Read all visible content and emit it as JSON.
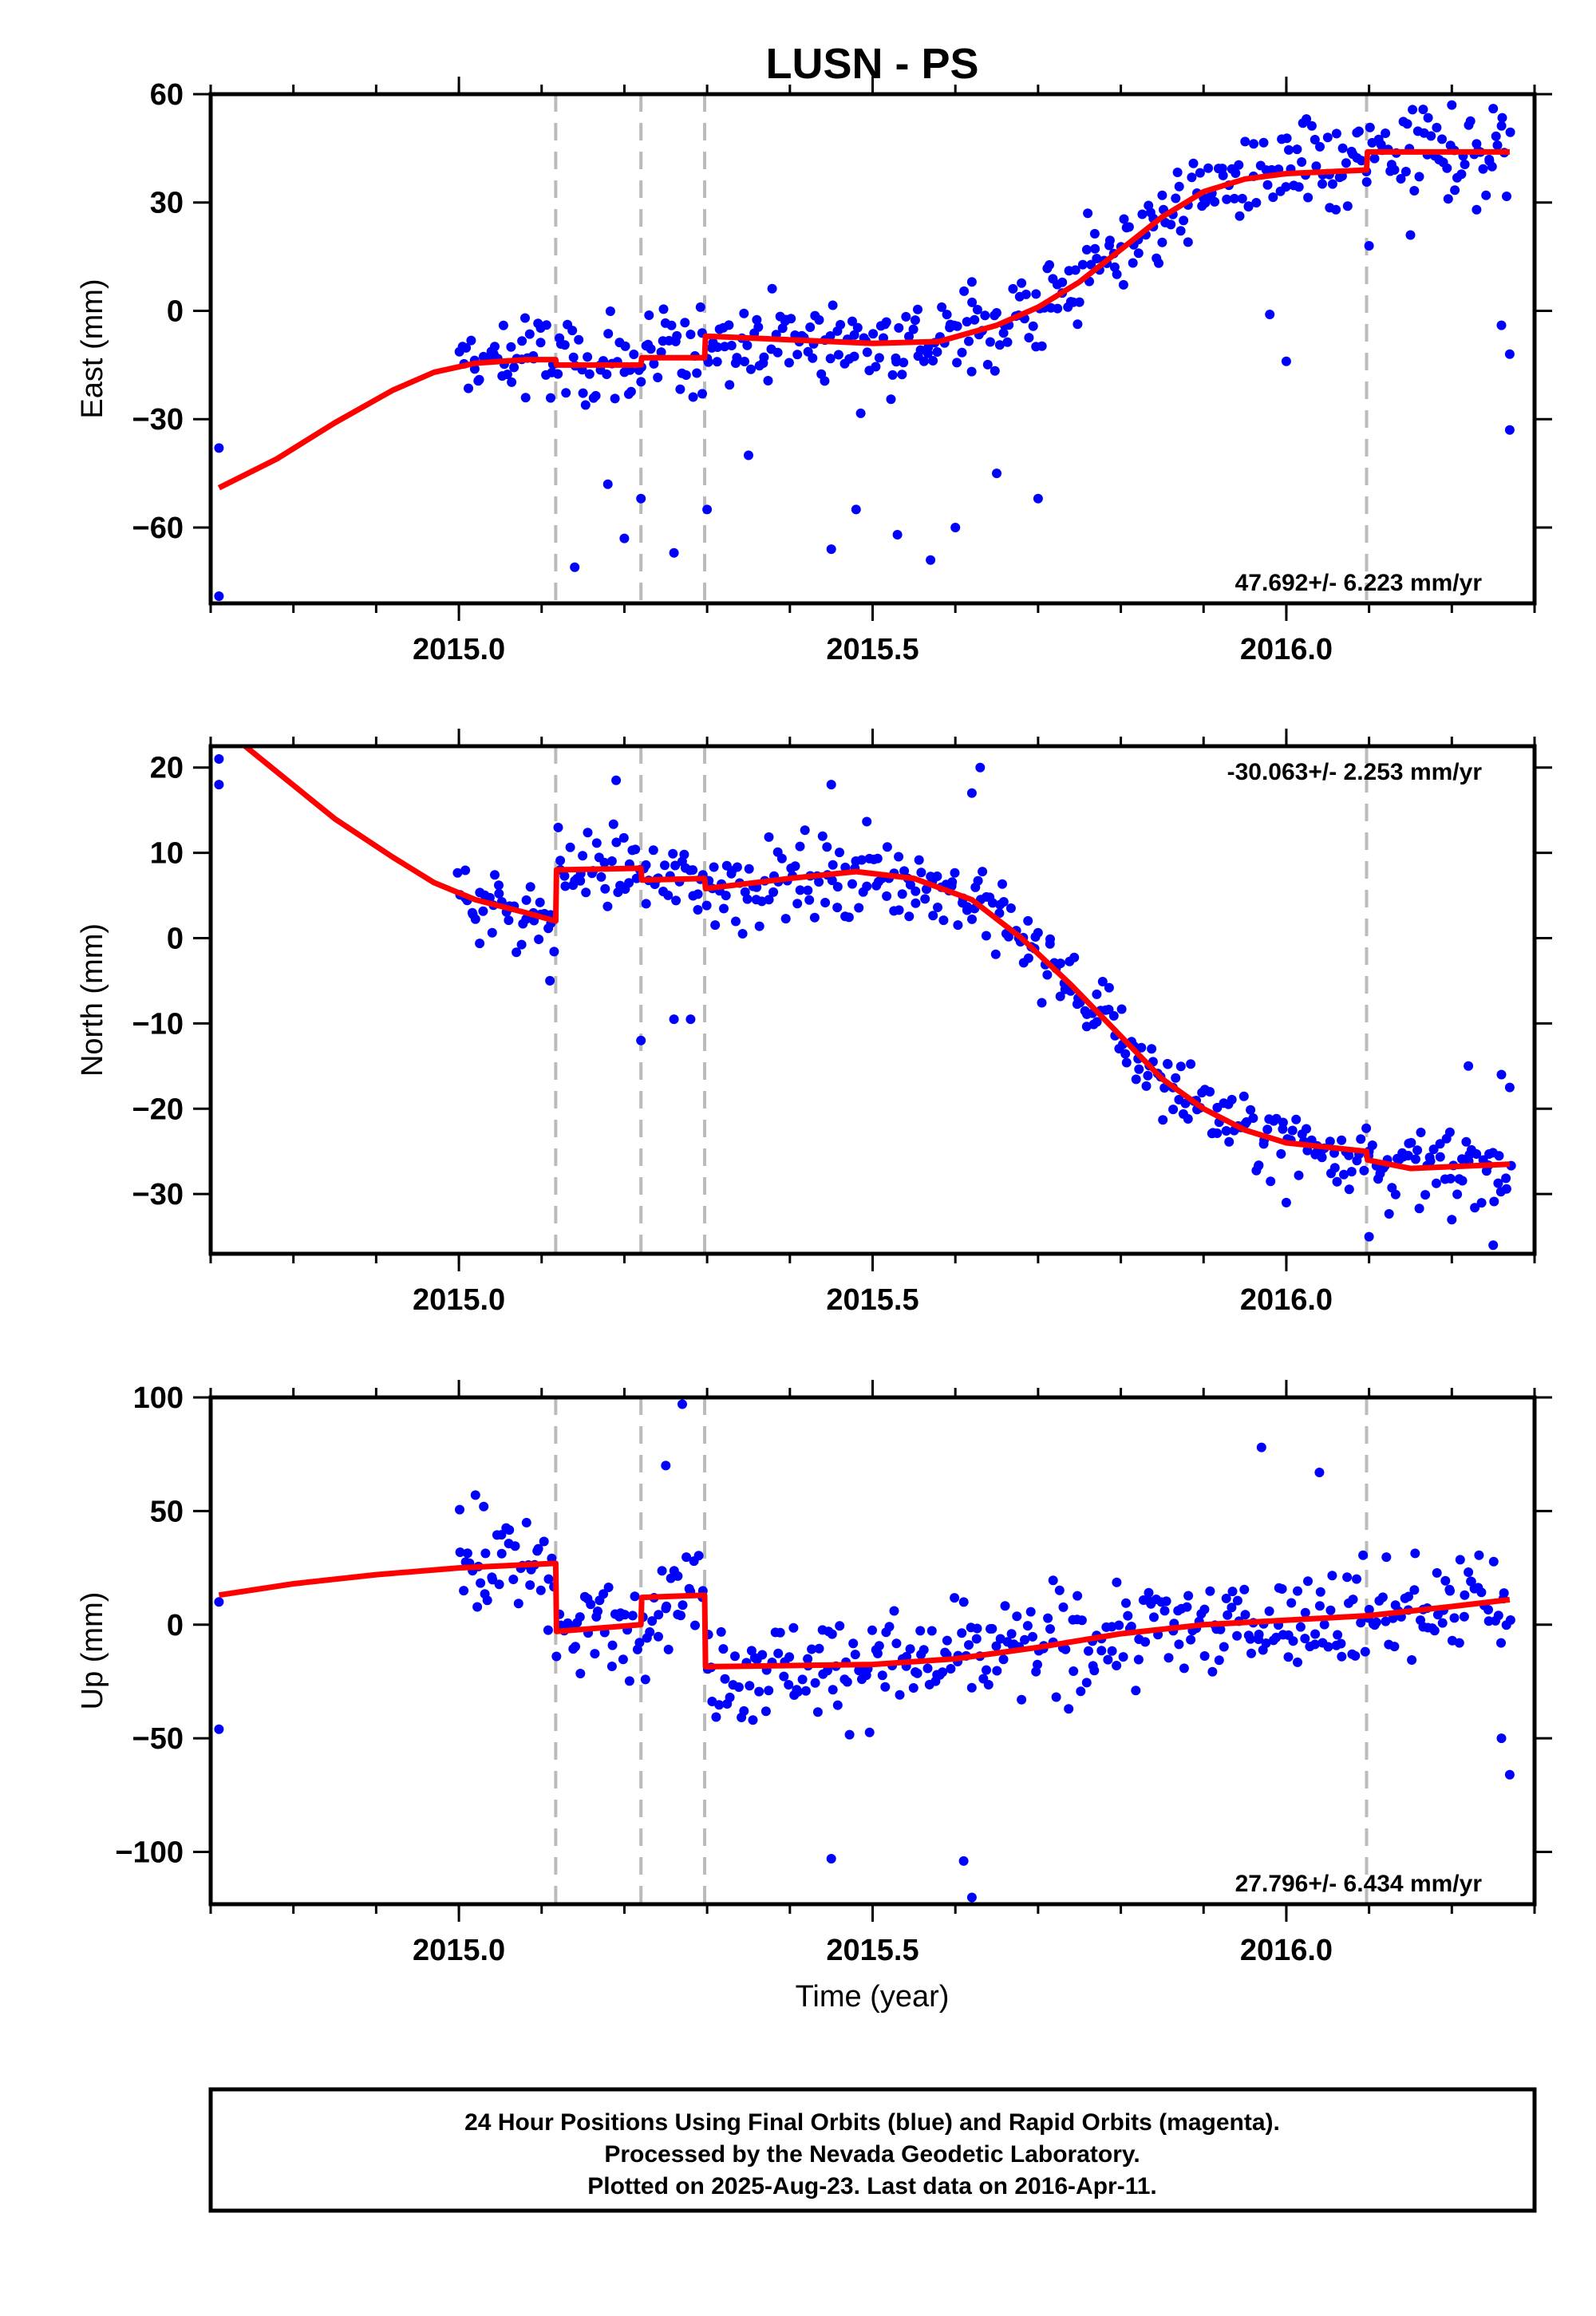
{
  "title": "LUSN - PS",
  "xlabel": "Time (year)",
  "footer": {
    "line1": "24 Hour Positions Using Final Orbits (blue) and Rapid Orbits (magenta).",
    "line2": "Processed by the Nevada Geodetic Laboratory.",
    "line3": "Plotted on 2025-Aug-23. Last data on 2016-Apr-11."
  },
  "colors": {
    "data": "#0000ff",
    "model": "#ff0000",
    "breaks": "#bbbbbb"
  },
  "chart_data": [
    {
      "type": "scatter",
      "component": "east",
      "ylabel": "East (mm)",
      "rate_text": "47.692+/- 6.223 mm/yr",
      "rate_position": "bottom-right",
      "xlim": [
        2014.7,
        2016.3
      ],
      "ylim": [
        -81,
        60
      ],
      "xticks": [
        2015.0,
        2015.5,
        2016.0
      ],
      "xtick_labels": [
        "2015.0",
        "2015.5",
        "2016.0"
      ],
      "yticks": [
        60,
        30,
        0,
        -30,
        -60
      ],
      "ytick_labels": [
        "60",
        "30",
        "0",
        "−30",
        "−60"
      ],
      "breaks": [
        2015.117,
        2015.22,
        2015.297,
        2016.097
      ],
      "model": [
        [
          2014.71,
          -49
        ],
        [
          2014.78,
          -41
        ],
        [
          2014.85,
          -31
        ],
        [
          2014.92,
          -22
        ],
        [
          2014.97,
          -17
        ],
        [
          2015.02,
          -14.5
        ],
        [
          2015.08,
          -13.5
        ],
        [
          2015.117,
          -13.5
        ],
        [
          2015.118,
          -15
        ],
        [
          2015.22,
          -15
        ],
        [
          2015.221,
          -13
        ],
        [
          2015.297,
          -13
        ],
        [
          2015.298,
          -7
        ],
        [
          2015.4,
          -8
        ],
        [
          2015.5,
          -9
        ],
        [
          2015.58,
          -8.5
        ],
        [
          2015.65,
          -4
        ],
        [
          2015.7,
          1
        ],
        [
          2015.75,
          8
        ],
        [
          2015.8,
          17
        ],
        [
          2015.85,
          26
        ],
        [
          2015.9,
          33
        ],
        [
          2015.95,
          36.5
        ],
        [
          2016.0,
          38
        ],
        [
          2016.05,
          38.5
        ],
        [
          2016.097,
          39
        ],
        [
          2016.098,
          44
        ],
        [
          2016.2,
          44
        ],
        [
          2016.27,
          44
        ]
      ],
      "anchor_points": [
        [
          2014.71,
          -38
        ],
        [
          2014.71,
          -79
        ],
        [
          2015.08,
          -2
        ],
        [
          2015.14,
          -71
        ],
        [
          2015.18,
          -48
        ],
        [
          2015.2,
          -63
        ],
        [
          2015.22,
          -52
        ],
        [
          2015.26,
          -67
        ],
        [
          2015.3,
          -55
        ],
        [
          2015.35,
          -40
        ],
        [
          2015.45,
          -66
        ],
        [
          2015.48,
          -55
        ],
        [
          2015.53,
          -62
        ],
        [
          2015.57,
          -69
        ],
        [
          2015.6,
          -60
        ],
        [
          2015.65,
          -45
        ],
        [
          2015.7,
          -52
        ],
        [
          2015.62,
          8
        ],
        [
          2015.76,
          27
        ],
        [
          2015.85,
          32
        ],
        [
          2016.0,
          -14
        ],
        [
          2015.98,
          -1
        ],
        [
          2016.02,
          52
        ],
        [
          2016.05,
          48
        ],
        [
          2016.15,
          21
        ],
        [
          2016.1,
          18
        ],
        [
          2016.2,
          57
        ],
        [
          2016.25,
          56
        ],
        [
          2016.26,
          -4
        ],
        [
          2016.27,
          -12
        ],
        [
          2016.27,
          -33
        ],
        [
          2016.23,
          28
        ],
        [
          2016.06,
          28
        ]
      ],
      "model_hint": "points scatter around the model line"
    },
    {
      "type": "scatter",
      "component": "north",
      "ylabel": "North (mm)",
      "rate_text": "-30.063+/- 2.253 mm/yr",
      "rate_position": "top-right",
      "xlim": [
        2014.7,
        2016.3
      ],
      "ylim": [
        -37,
        22.5
      ],
      "xticks": [
        2015.0,
        2015.5,
        2016.0
      ],
      "xtick_labels": [
        "2015.0",
        "2015.5",
        "2016.0"
      ],
      "yticks": [
        20,
        10,
        0,
        -10,
        -20,
        -30
      ],
      "ytick_labels": [
        "20",
        "10",
        "0",
        "−10",
        "−20",
        "−30"
      ],
      "breaks": [
        2015.117,
        2015.22,
        2015.297,
        2016.097
      ],
      "model": [
        [
          2014.71,
          25
        ],
        [
          2014.78,
          19.5
        ],
        [
          2014.85,
          14
        ],
        [
          2014.92,
          9.5
        ],
        [
          2014.97,
          6.5
        ],
        [
          2015.02,
          4.5
        ],
        [
          2015.08,
          3
        ],
        [
          2015.117,
          2
        ],
        [
          2015.118,
          8
        ],
        [
          2015.22,
          8.2
        ],
        [
          2015.221,
          6.8
        ],
        [
          2015.297,
          7
        ],
        [
          2015.298,
          5.8
        ],
        [
          2015.4,
          7
        ],
        [
          2015.48,
          7.8
        ],
        [
          2015.55,
          7
        ],
        [
          2015.62,
          4.5
        ],
        [
          2015.68,
          0
        ],
        [
          2015.74,
          -5.5
        ],
        [
          2015.8,
          -11.5
        ],
        [
          2015.85,
          -16.5
        ],
        [
          2015.9,
          -20
        ],
        [
          2015.95,
          -22.5
        ],
        [
          2016.0,
          -24
        ],
        [
          2016.097,
          -25
        ],
        [
          2016.098,
          -26
        ],
        [
          2016.15,
          -27
        ],
        [
          2016.27,
          -26.5
        ]
      ],
      "anchor_points": [
        [
          2014.71,
          21
        ],
        [
          2014.71,
          18
        ],
        [
          2015.11,
          -5
        ],
        [
          2015.22,
          -12
        ],
        [
          2015.26,
          -9.5
        ],
        [
          2015.28,
          -9.5
        ],
        [
          2015.19,
          18.5
        ],
        [
          2015.45,
          18
        ],
        [
          2015.63,
          20
        ],
        [
          2015.62,
          17
        ],
        [
          2016.0,
          -31
        ],
        [
          2016.1,
          -35
        ],
        [
          2016.22,
          -15
        ],
        [
          2016.26,
          -16
        ],
        [
          2016.27,
          -17.5
        ],
        [
          2016.25,
          -36
        ],
        [
          2016.2,
          -33
        ]
      ],
      "model_hint": "points scatter around the model line"
    },
    {
      "type": "scatter",
      "component": "up",
      "ylabel": "Up (mm)",
      "rate_text": "27.796+/- 6.434 mm/yr",
      "rate_position": "bottom-right",
      "xlim": [
        2014.7,
        2016.3
      ],
      "ylim": [
        -123,
        100
      ],
      "xticks": [
        2015.0,
        2015.5,
        2016.0
      ],
      "xtick_labels": [
        "2015.0",
        "2015.5",
        "2016.0"
      ],
      "yticks": [
        100,
        50,
        0,
        -50,
        -100
      ],
      "ytick_labels": [
        "100",
        "50",
        "0",
        "−50",
        "−100"
      ],
      "breaks": [
        2015.117,
        2015.22,
        2015.297,
        2016.097
      ],
      "model": [
        [
          2014.71,
          13
        ],
        [
          2014.8,
          18
        ],
        [
          2014.9,
          22
        ],
        [
          2015.0,
          25
        ],
        [
          2015.117,
          27
        ],
        [
          2015.118,
          -3
        ],
        [
          2015.22,
          0
        ],
        [
          2015.221,
          12
        ],
        [
          2015.297,
          13
        ],
        [
          2015.298,
          -18.5
        ],
        [
          2015.4,
          -18
        ],
        [
          2015.5,
          -17.5
        ],
        [
          2015.6,
          -15
        ],
        [
          2015.7,
          -10
        ],
        [
          2015.8,
          -4
        ],
        [
          2015.9,
          0
        ],
        [
          2016.0,
          2
        ],
        [
          2016.1,
          4
        ],
        [
          2016.2,
          8
        ],
        [
          2016.27,
          11
        ]
      ],
      "anchor_points": [
        [
          2014.71,
          10
        ],
        [
          2014.71,
          -46
        ],
        [
          2015.27,
          97
        ],
        [
          2015.25,
          70
        ],
        [
          2015.62,
          -120
        ],
        [
          2015.61,
          -104
        ],
        [
          2015.45,
          -103
        ],
        [
          2015.97,
          78
        ],
        [
          2016.04,
          67
        ],
        [
          2016.27,
          -66
        ],
        [
          2016.26,
          -50
        ],
        [
          2015.02,
          57
        ],
        [
          2015.03,
          52
        ]
      ],
      "model_hint": "points scatter around the model line"
    }
  ]
}
